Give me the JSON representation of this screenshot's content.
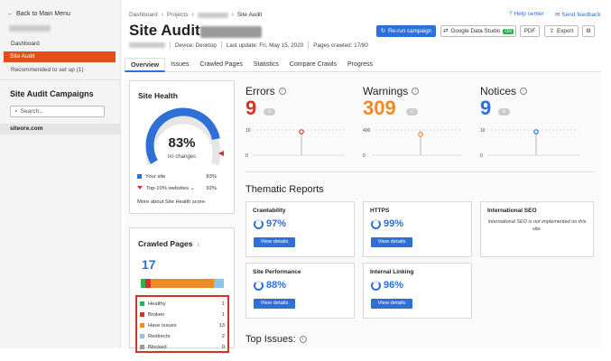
{
  "sidebar": {
    "back_label": "Back to Main Menu",
    "items": [
      {
        "label": "Dashboard"
      },
      {
        "label": "Site Audit"
      },
      {
        "label": "Recommended to set up (1)"
      }
    ],
    "campaigns_title": "Site Audit Campaigns",
    "search_placeholder": "Search...",
    "site": "siteore.com"
  },
  "header": {
    "breadcrumb": [
      "Dashboard",
      "Projects",
      "Site Audit"
    ],
    "help_label": "Help center",
    "feedback_label": "Send feedback",
    "title": "Site Audit:",
    "device": "Device: Desktop",
    "last_update": "Last update: Fri, May 15, 2020",
    "pages_crawled": "Pages crawled: 17/80",
    "buttons": {
      "rerun": "Re-run campaign",
      "gds": "Google Data Studio",
      "gds_badge": "ON",
      "pdf": "PDF",
      "export": "Export"
    }
  },
  "tabs": [
    "Overview",
    "Issues",
    "Crawled Pages",
    "Statistics",
    "Compare Crawls",
    "Progress"
  ],
  "site_health": {
    "title": "Site Health",
    "percent": "83%",
    "change": "no changes",
    "value": 0.83,
    "legend": [
      {
        "label": "Your site",
        "value": "83%"
      },
      {
        "label": "Top-10% websites",
        "value": "92%"
      }
    ],
    "more": "More about Site Health score"
  },
  "crawled_pages": {
    "title": "Crawled Pages",
    "count": "17",
    "rows": [
      {
        "label": "Healthy",
        "value": "1",
        "color": "#2bb24c"
      },
      {
        "label": "Broken",
        "value": "1",
        "color": "#d7322a"
      },
      {
        "label": "Have issues",
        "value": "13",
        "color": "#f08a24"
      },
      {
        "label": "Redirects",
        "value": "2",
        "color": "#8ec3ee"
      },
      {
        "label": "Blocked",
        "value": "0",
        "color": "#999999"
      }
    ]
  },
  "stats": [
    {
      "label": "Errors",
      "value": "9",
      "color": "#d7322a",
      "chart_top": "10",
      "chart_bottom": "0"
    },
    {
      "label": "Warnings",
      "value": "309",
      "color": "#f08a24",
      "chart_top": "400",
      "chart_bottom": "0"
    },
    {
      "label": "Notices",
      "value": "9",
      "color": "#2e6fd8",
      "chart_top": "10",
      "chart_bottom": "0"
    }
  ],
  "thematic": {
    "title": "Thematic Reports",
    "view_label": "View details",
    "reports": [
      {
        "title": "Crawlability",
        "value": "97%"
      },
      {
        "title": "HTTPS",
        "value": "99%"
      },
      {
        "title": "Site Performance",
        "value": "88%"
      },
      {
        "title": "Internal Linking",
        "value": "96%"
      }
    ],
    "intl": {
      "title": "International SEO",
      "note": "International SEO is not implemented on this site."
    }
  },
  "top_issues": {
    "title": "Top Issues:"
  },
  "colors": {
    "accent": "#2e6fd8",
    "active": "#e04f1d",
    "error": "#d7322a",
    "warning": "#f08a24"
  }
}
